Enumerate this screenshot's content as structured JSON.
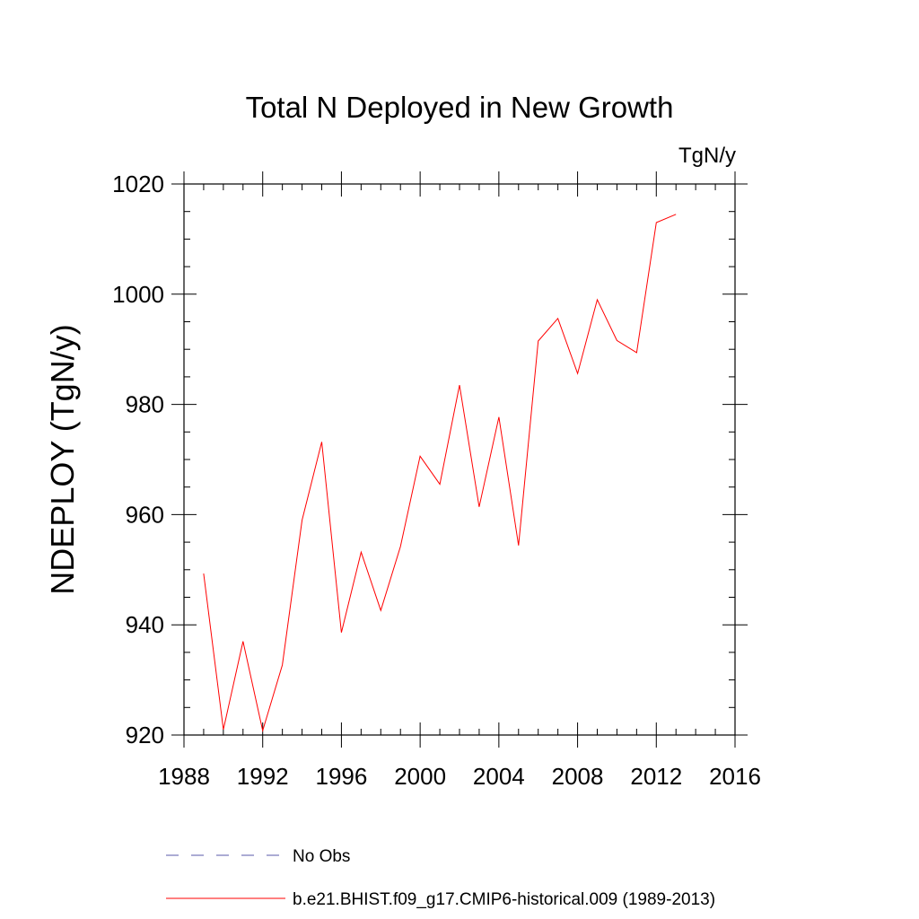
{
  "chart_data": {
    "type": "line",
    "title": "Total N Deployed in New Growth",
    "units_label": "TgN/y",
    "ylabel": "NDEPLOY  (TgN/y)",
    "xlabel": "",
    "xlim": [
      1988,
      2016
    ],
    "ylim": [
      920,
      1020
    ],
    "x_ticks": [
      "1988",
      "1992",
      "1996",
      "2000",
      "2004",
      "2008",
      "2012",
      "2016"
    ],
    "y_ticks": [
      "920",
      "940",
      "960",
      "980",
      "1000",
      "1020"
    ],
    "grid": false,
    "legend_position": "bottom",
    "series": [
      {
        "name": "b.e21.BHIST.f09_g17.CMIP6-historical.009 (1989-2013)",
        "color": "#ff0000",
        "style": "solid",
        "x": [
          1989,
          1990,
          1991,
          1992,
          1993,
          1994,
          1995,
          1996,
          1997,
          1998,
          1999,
          2000,
          2001,
          2002,
          2003,
          2004,
          2005,
          2006,
          2007,
          2008,
          2009,
          2010,
          2011,
          2012,
          2013
        ],
        "values": [
          949.3,
          921.0,
          937.0,
          920.8,
          932.7,
          959.0,
          973.2,
          938.6,
          953.2,
          942.6,
          954.2,
          970.6,
          965.5,
          983.5,
          961.4,
          977.7,
          954.4,
          991.5,
          995.6,
          985.6,
          999.0,
          991.6,
          989.4,
          1013.0,
          1014.5
        ]
      }
    ],
    "legend": [
      {
        "label": "No Obs",
        "color": "#5a5aa8",
        "style": "dashed"
      },
      {
        "label": "b.e21.BHIST.f09_g17.CMIP6-historical.009 (1989-2013)",
        "color": "#ff0000",
        "style": "solid"
      }
    ]
  }
}
